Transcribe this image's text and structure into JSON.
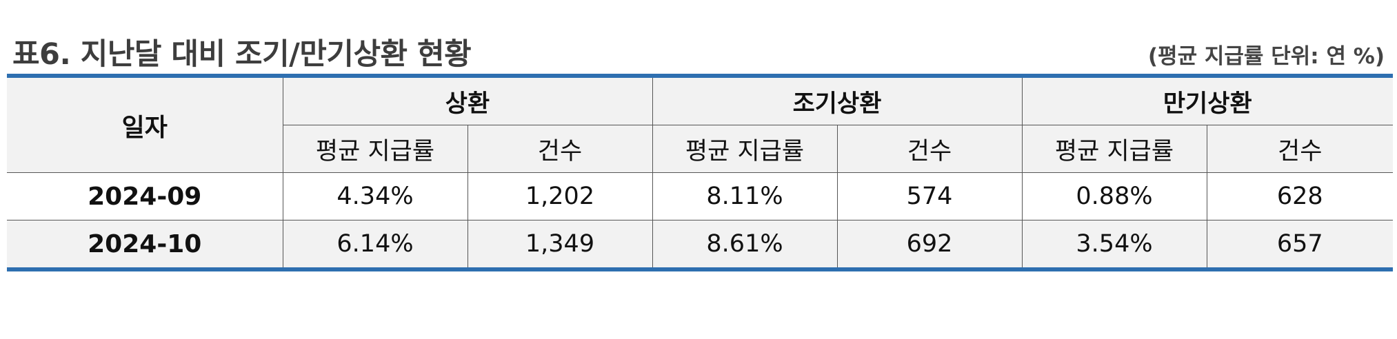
{
  "title": "표6. 지난달 대비 조기/만기상환 현황",
  "unit_note": "(평균 지급률 단위: 연 %)",
  "table": {
    "date_header": "일자",
    "groups": [
      "상환",
      "조기상환",
      "만기상환"
    ],
    "sub_headers": [
      "평균 지급률",
      "건수",
      "평균 지급률",
      "건수",
      "평균 지급률",
      "건수"
    ],
    "rows": [
      {
        "date": "2024-09",
        "values": [
          "4.34%",
          "1,202",
          "8.11%",
          "574",
          "0.88%",
          "628"
        ]
      },
      {
        "date": "2024-10",
        "values": [
          "6.14%",
          "1,349",
          "8.61%",
          "692",
          "3.54%",
          "657"
        ]
      }
    ]
  },
  "colors": {
    "rule": "#2e6fb0",
    "header_bg": "#f2f2f2"
  }
}
